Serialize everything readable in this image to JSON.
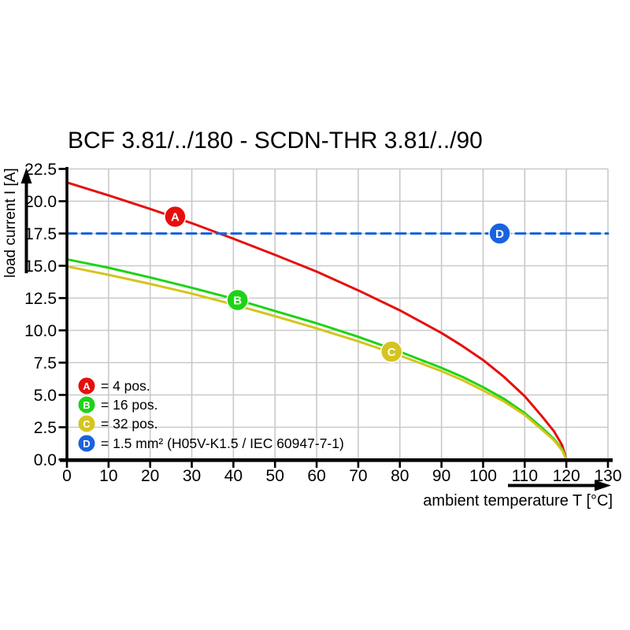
{
  "page": {
    "background": "#ffffff"
  },
  "chart_data": {
    "type": "line",
    "title": "BCF 3.81/../180 - SCDN-THR 3.81/../90",
    "xlabel": "ambient temperature T [°C]",
    "ylabel": "load current I [A]",
    "xlim": [
      0,
      130
    ],
    "ylim": [
      0,
      22.5
    ],
    "x_ticks": [
      0,
      10,
      20,
      30,
      40,
      50,
      60,
      70,
      80,
      90,
      100,
      110,
      120,
      130
    ],
    "y_tick_values": [
      0,
      2.5,
      5,
      7.5,
      10,
      12.5,
      15,
      17.5,
      20,
      22.5
    ],
    "y_tick_labels": [
      "0.0",
      "2.5",
      "5.0",
      "7.5",
      "10.0",
      "12.5",
      "15.0",
      "17.5",
      "20.0",
      "22.5"
    ],
    "grid": true,
    "grid_color": "#c9c9c9",
    "axis_color": "#000000",
    "series": [
      {
        "name": "A",
        "label": "4 pos.",
        "color": "#e60f0c",
        "style": "solid",
        "points": [
          [
            0,
            21.45
          ],
          [
            10,
            20.45
          ],
          [
            20,
            19.4
          ],
          [
            30,
            18.3
          ],
          [
            40,
            17.1
          ],
          [
            50,
            15.85
          ],
          [
            60,
            14.55
          ],
          [
            70,
            13.1
          ],
          [
            80,
            11.55
          ],
          [
            90,
            9.8
          ],
          [
            95,
            8.8
          ],
          [
            100,
            7.7
          ],
          [
            105,
            6.4
          ],
          [
            110,
            4.9
          ],
          [
            114,
            3.4
          ],
          [
            117,
            2.2
          ],
          [
            119,
            1.1
          ],
          [
            120,
            0
          ]
        ]
      },
      {
        "name": "B",
        "label": "16 pos.",
        "color": "#1ed315",
        "style": "solid",
        "points": [
          [
            0,
            15.5
          ],
          [
            10,
            14.85
          ],
          [
            20,
            14.1
          ],
          [
            30,
            13.3
          ],
          [
            40,
            12.45
          ],
          [
            50,
            11.5
          ],
          [
            60,
            10.55
          ],
          [
            70,
            9.5
          ],
          [
            80,
            8.35
          ],
          [
            90,
            7.1
          ],
          [
            95,
            6.4
          ],
          [
            100,
            5.6
          ],
          [
            105,
            4.7
          ],
          [
            110,
            3.6
          ],
          [
            114,
            2.5
          ],
          [
            117,
            1.6
          ],
          [
            119,
            0.8
          ],
          [
            120,
            0
          ]
        ]
      },
      {
        "name": "C",
        "label": "32 pos.",
        "color": "#d5c41e",
        "style": "solid",
        "points": [
          [
            0,
            14.95
          ],
          [
            10,
            14.3
          ],
          [
            20,
            13.6
          ],
          [
            30,
            12.85
          ],
          [
            40,
            12.0
          ],
          [
            50,
            11.1
          ],
          [
            60,
            10.15
          ],
          [
            70,
            9.15
          ],
          [
            80,
            8.05
          ],
          [
            90,
            6.85
          ],
          [
            95,
            6.15
          ],
          [
            100,
            5.35
          ],
          [
            105,
            4.5
          ],
          [
            110,
            3.45
          ],
          [
            114,
            2.35
          ],
          [
            117,
            1.5
          ],
          [
            119,
            0.7
          ],
          [
            120,
            0
          ]
        ]
      },
      {
        "name": "D",
        "label": "1.5 mm² (H05V-K1.5 / IEC 60947-7-1)",
        "color": "#1a63de",
        "style": "dashed",
        "points": [
          [
            0,
            17.5
          ],
          [
            130,
            17.5
          ]
        ]
      }
    ],
    "markers": [
      {
        "letter": "A",
        "x": 26,
        "y": 18.8,
        "color": "#e60f0c"
      },
      {
        "letter": "B",
        "x": 41,
        "y": 12.35,
        "color": "#1ed315"
      },
      {
        "letter": "C",
        "x": 78,
        "y": 8.35,
        "color": "#d5c41e"
      },
      {
        "letter": "D",
        "x": 104,
        "y": 17.5,
        "color": "#1a63de"
      }
    ],
    "legend": {
      "position": "inside-lower-left",
      "items": [
        {
          "letter": "A",
          "label": "= 4 pos.",
          "color": "#e60f0c"
        },
        {
          "letter": "B",
          "label": "= 16 pos.",
          "color": "#1ed315"
        },
        {
          "letter": "C",
          "label": "= 32 pos.",
          "color": "#d5c41e"
        },
        {
          "letter": "D",
          "label": "= 1.5 mm² (H05V-K1.5 / IEC 60947-7-1)",
          "color": "#1a63de"
        }
      ]
    }
  }
}
